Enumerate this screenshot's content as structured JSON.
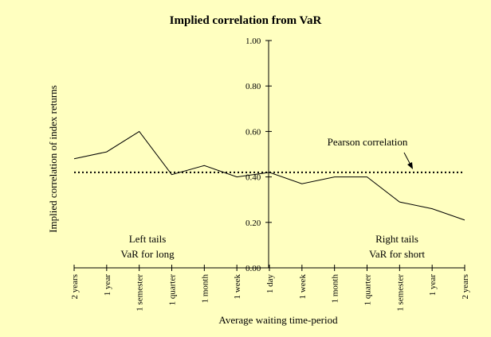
{
  "chart_data": {
    "type": "line",
    "title": "Implied correlation from VaR",
    "xlabel": "Average waiting time-period",
    "ylabel": "Implied correlation of index returns",
    "ylim": [
      0,
      1
    ],
    "y_ticks": [
      "0.00",
      "0.20",
      "0.40",
      "0.60",
      "0.80",
      "1.00"
    ],
    "categories": [
      "2 years",
      "1 year",
      "1 semester",
      "1 quarter",
      "1 month",
      "1 week",
      "1 day",
      "1 week",
      "1 month",
      "1 quarter",
      "1 semester",
      "1 year",
      "2 years"
    ],
    "series": [
      {
        "values": [
          0.48,
          0.51,
          0.6,
          0.41,
          0.45,
          0.4,
          0.42,
          0.37,
          0.4,
          0.4,
          0.29,
          0.26,
          0.21
        ]
      }
    ],
    "reference_line": {
      "label": "Pearson correlation",
      "value": 0.42,
      "style": "dotted"
    },
    "annotations": [
      {
        "lines": [
          "Left tails",
          "VaR for long"
        ]
      },
      {
        "lines": [
          "Right tails",
          "VaR for short"
        ]
      }
    ],
    "grid": false,
    "legend": "none",
    "colors": {
      "background": "#ffffc0",
      "line": "#000000"
    }
  }
}
